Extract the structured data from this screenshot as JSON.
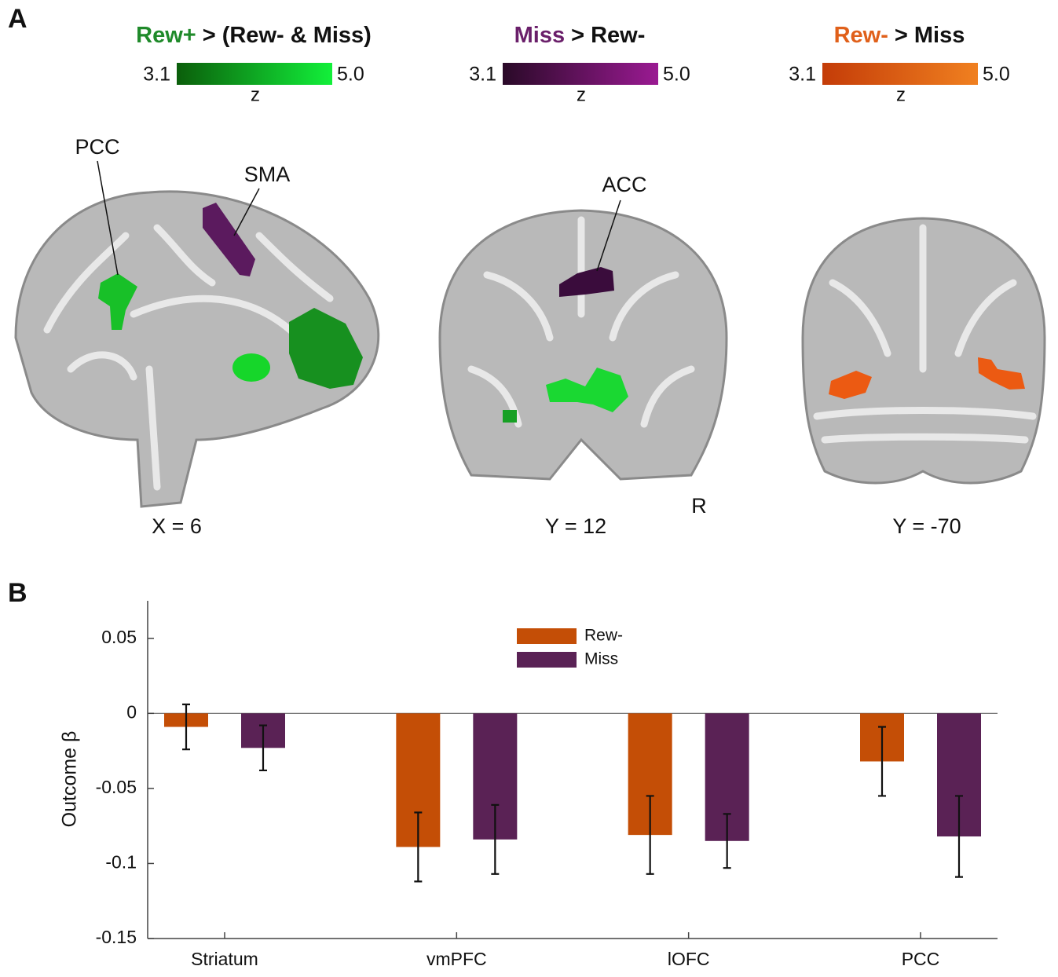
{
  "panel_a": {
    "label": "A",
    "contrasts": [
      {
        "title_colored": "Rew+",
        "title_rest": "> (Rew- & Miss)",
        "color": "#1f8a2a",
        "cmap": [
          "#0b5e0b",
          "#12f03a"
        ],
        "min": "3.1",
        "max": "5.0",
        "unit": "z"
      },
      {
        "title_colored": "Miss",
        "title_rest": "> Rew-",
        "color": "#6a1f6a",
        "cmap": [
          "#2a0a28",
          "#9a1a92"
        ],
        "min": "3.1",
        "max": "5.0",
        "unit": "z"
      },
      {
        "title_colored": "Rew-",
        "title_rest": "> Miss",
        "color": "#e0601a",
        "cmap": [
          "#c43c08",
          "#f08020"
        ],
        "min": "3.1",
        "max": "5.0",
        "unit": "z"
      }
    ],
    "slices": [
      {
        "label": "X = 6",
        "regions": [
          "PCC",
          "SMA"
        ]
      },
      {
        "label": "Y = 12",
        "regions": [
          "ACC"
        ],
        "side": "R"
      },
      {
        "label": "Y = -70"
      }
    ]
  },
  "chart_data": {
    "type": "bar",
    "panel_label": "B",
    "ylabel": "Outcome β",
    "categories": [
      "Striatum",
      "vmPFC",
      "lOFC",
      "PCC"
    ],
    "series": [
      {
        "name": "Rew-",
        "color": "#c44e06",
        "values": [
          -0.009,
          -0.089,
          -0.081,
          -0.032
        ],
        "errors": [
          0.015,
          0.023,
          0.026,
          0.023
        ]
      },
      {
        "name": "Miss",
        "color": "#5a2255",
        "values": [
          -0.023,
          -0.084,
          -0.085,
          -0.082
        ],
        "errors": [
          0.015,
          0.023,
          0.018,
          0.027
        ]
      }
    ],
    "ylim": [
      -0.15,
      0.075
    ],
    "yticks": [
      -0.15,
      -0.1,
      -0.05,
      0,
      0.05
    ]
  }
}
